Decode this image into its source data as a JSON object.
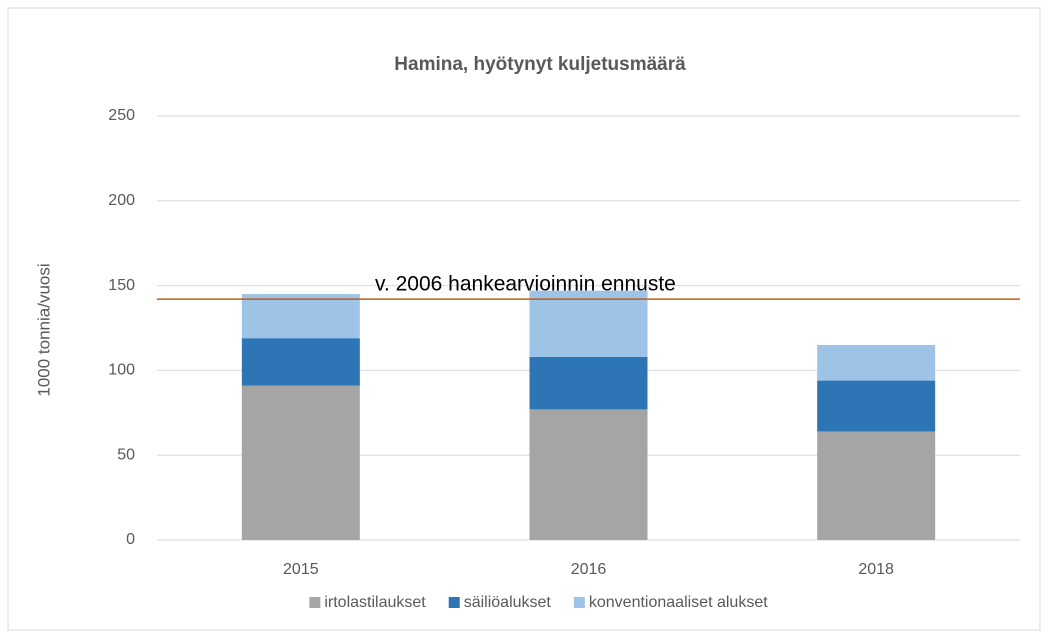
{
  "chart_data": {
    "type": "stacked_bar",
    "title": "Hamina, hyötynyt kuljetusmäärä",
    "y_label": "1000 tonnia/vuosi",
    "categories": [
      "2015",
      "2016",
      "2018"
    ],
    "series": [
      {
        "name": "irtolastilaukset",
        "color": "#a5a5a5",
        "values": [
          91,
          77,
          64
        ]
      },
      {
        "name": "säiliöalukset",
        "color": "#2e75b6",
        "values": [
          28,
          31,
          30
        ]
      },
      {
        "name": "konventionaaliset alukset",
        "color": "#9dc3e6",
        "values": [
          26,
          39,
          21
        ]
      }
    ],
    "reference_line": {
      "value": 142,
      "label": "v. 2006 hankearvioinnin ennuste",
      "color": "#c55a11"
    },
    "ylim": [
      0,
      250
    ],
    "yticks": [
      0,
      50,
      100,
      150,
      200,
      250
    ],
    "grid": true,
    "legend": "bottom"
  }
}
